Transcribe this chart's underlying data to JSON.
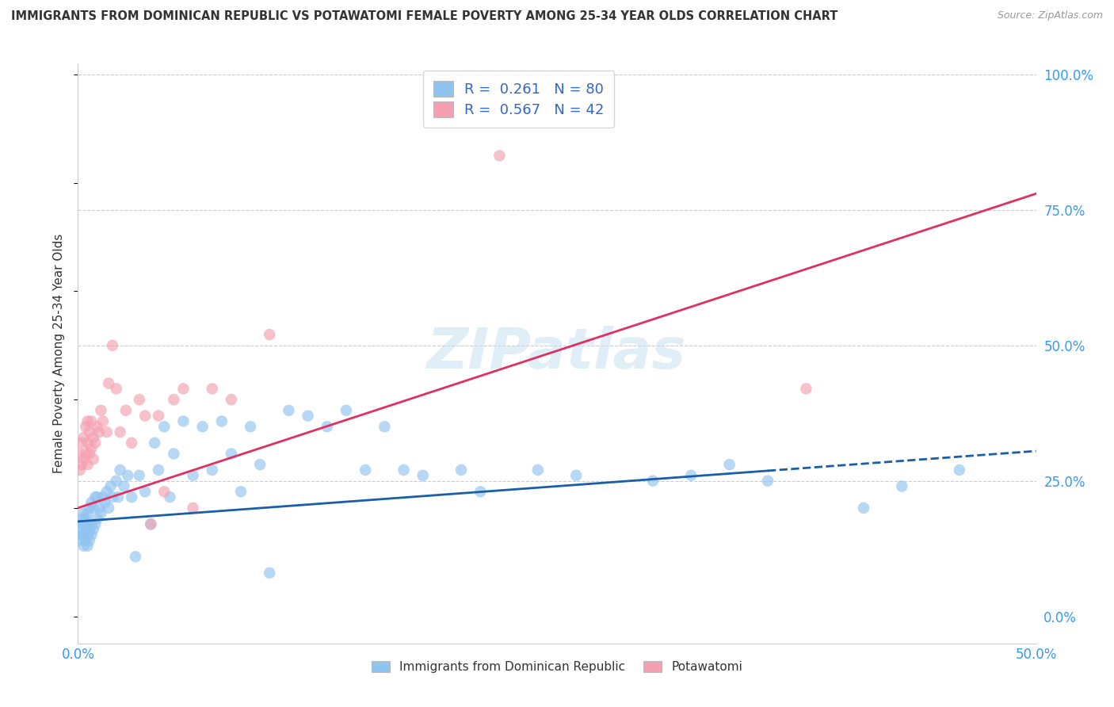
{
  "title": "IMMIGRANTS FROM DOMINICAN REPUBLIC VS POTAWATOMI FEMALE POVERTY AMONG 25-34 YEAR OLDS CORRELATION CHART",
  "source": "Source: ZipAtlas.com",
  "ylabel": "Female Poverty Among 25-34 Year Olds",
  "xlim": [
    0.0,
    0.5
  ],
  "ylim": [
    0.0,
    1.0
  ],
  "grid_color": "#cccccc",
  "background_color": "#ffffff",
  "watermark": "ZIPatlas",
  "series1_color": "#90c4f0",
  "series2_color": "#f4a0b0",
  "series1_label": "Immigrants from Dominican Republic",
  "series2_label": "Potawatomi",
  "legend_R1": "R =  0.261",
  "legend_N1": "N = 80",
  "legend_R2": "R =  0.567",
  "legend_N2": "N = 42",
  "blue_trend_color": "#1a5ea8",
  "pink_trend_color": "#e03060",
  "blue_x": [
    0.001,
    0.001,
    0.002,
    0.002,
    0.002,
    0.003,
    0.003,
    0.003,
    0.003,
    0.004,
    0.004,
    0.004,
    0.005,
    0.005,
    0.005,
    0.005,
    0.006,
    0.006,
    0.006,
    0.007,
    0.007,
    0.007,
    0.008,
    0.008,
    0.009,
    0.009,
    0.01,
    0.01,
    0.011,
    0.012,
    0.013,
    0.014,
    0.015,
    0.016,
    0.017,
    0.018,
    0.02,
    0.021,
    0.022,
    0.024,
    0.026,
    0.028,
    0.03,
    0.032,
    0.035,
    0.038,
    0.04,
    0.042,
    0.045,
    0.048,
    0.05,
    0.055,
    0.06,
    0.065,
    0.07,
    0.075,
    0.08,
    0.085,
    0.09,
    0.095,
    0.1,
    0.11,
    0.12,
    0.13,
    0.14,
    0.15,
    0.16,
    0.17,
    0.18,
    0.2,
    0.21,
    0.24,
    0.26,
    0.3,
    0.32,
    0.34,
    0.36,
    0.41,
    0.43,
    0.46
  ],
  "blue_y": [
    0.14,
    0.16,
    0.15,
    0.17,
    0.18,
    0.13,
    0.15,
    0.17,
    0.19,
    0.14,
    0.16,
    0.18,
    0.13,
    0.15,
    0.17,
    0.19,
    0.14,
    0.16,
    0.2,
    0.15,
    0.17,
    0.21,
    0.16,
    0.2,
    0.17,
    0.22,
    0.18,
    0.22,
    0.2,
    0.19,
    0.22,
    0.21,
    0.23,
    0.2,
    0.24,
    0.22,
    0.25,
    0.22,
    0.27,
    0.24,
    0.26,
    0.22,
    0.11,
    0.26,
    0.23,
    0.17,
    0.32,
    0.27,
    0.35,
    0.22,
    0.3,
    0.36,
    0.26,
    0.35,
    0.27,
    0.36,
    0.3,
    0.23,
    0.35,
    0.28,
    0.08,
    0.38,
    0.37,
    0.35,
    0.38,
    0.27,
    0.35,
    0.27,
    0.26,
    0.27,
    0.23,
    0.27,
    0.26,
    0.25,
    0.26,
    0.28,
    0.25,
    0.2,
    0.24,
    0.27
  ],
  "pink_x": [
    0.001,
    0.001,
    0.002,
    0.002,
    0.003,
    0.003,
    0.004,
    0.004,
    0.005,
    0.005,
    0.005,
    0.006,
    0.006,
    0.007,
    0.007,
    0.008,
    0.008,
    0.009,
    0.01,
    0.011,
    0.012,
    0.013,
    0.015,
    0.016,
    0.018,
    0.02,
    0.022,
    0.025,
    0.028,
    0.032,
    0.035,
    0.038,
    0.042,
    0.045,
    0.05,
    0.055,
    0.06,
    0.07,
    0.08,
    0.1,
    0.22,
    0.38
  ],
  "pink_y": [
    0.27,
    0.3,
    0.28,
    0.32,
    0.29,
    0.33,
    0.3,
    0.35,
    0.28,
    0.32,
    0.36,
    0.3,
    0.34,
    0.31,
    0.36,
    0.29,
    0.33,
    0.32,
    0.35,
    0.34,
    0.38,
    0.36,
    0.34,
    0.43,
    0.5,
    0.42,
    0.34,
    0.38,
    0.32,
    0.4,
    0.37,
    0.17,
    0.37,
    0.23,
    0.4,
    0.42,
    0.2,
    0.42,
    0.4,
    0.52,
    0.85,
    0.42
  ]
}
